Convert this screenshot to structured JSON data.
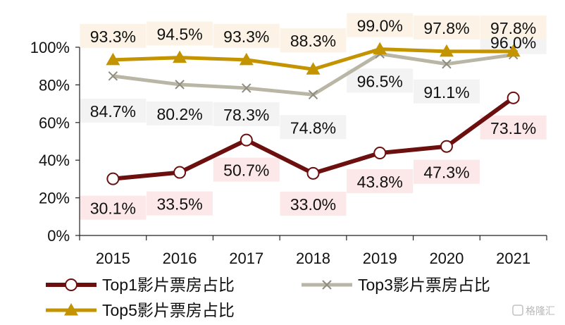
{
  "chart_data": {
    "type": "line",
    "categories": [
      "2015",
      "2016",
      "2017",
      "2018",
      "2019",
      "2020",
      "2021"
    ],
    "ylim": [
      0,
      100
    ],
    "yticks": [
      0,
      20,
      40,
      60,
      80,
      100
    ],
    "ytick_labels": [
      "0%",
      "20%",
      "40%",
      "60%",
      "80%",
      "100%"
    ],
    "grid": false,
    "legend_position": "bottom",
    "series": [
      {
        "name": "Top1影片票房占比",
        "values": [
          30.1,
          33.5,
          50.7,
          33.0,
          43.8,
          47.3,
          73.1
        ],
        "labels": [
          "30.1%",
          "33.5%",
          "50.7%",
          "33.0%",
          "43.8%",
          "47.3%",
          "73.1%"
        ],
        "color": "#6b0f0f",
        "marker": "circle",
        "label_bg": "#fce8e8"
      },
      {
        "name": "Top3影片票房占比",
        "values": [
          84.7,
          80.2,
          78.3,
          74.8,
          96.5,
          91.1,
          96.0
        ],
        "labels": [
          "84.7%",
          "80.2%",
          "78.3%",
          "74.8%",
          "96.5%",
          "91.1%",
          "96.0%"
        ],
        "color": "#b9b6a6",
        "marker": "x",
        "label_bg": "#f3f3f3"
      },
      {
        "name": "Top5影片票房占比",
        "values": [
          93.3,
          94.5,
          93.3,
          88.3,
          99.0,
          97.8,
          97.8
        ],
        "labels": [
          "93.3%",
          "94.5%",
          "93.3%",
          "88.3%",
          "99.0%",
          "97.8%",
          "97.8%"
        ],
        "color": "#c39300",
        "marker": "triangle",
        "label_bg": "#fcf3e6"
      }
    ]
  },
  "watermark": "格隆汇"
}
